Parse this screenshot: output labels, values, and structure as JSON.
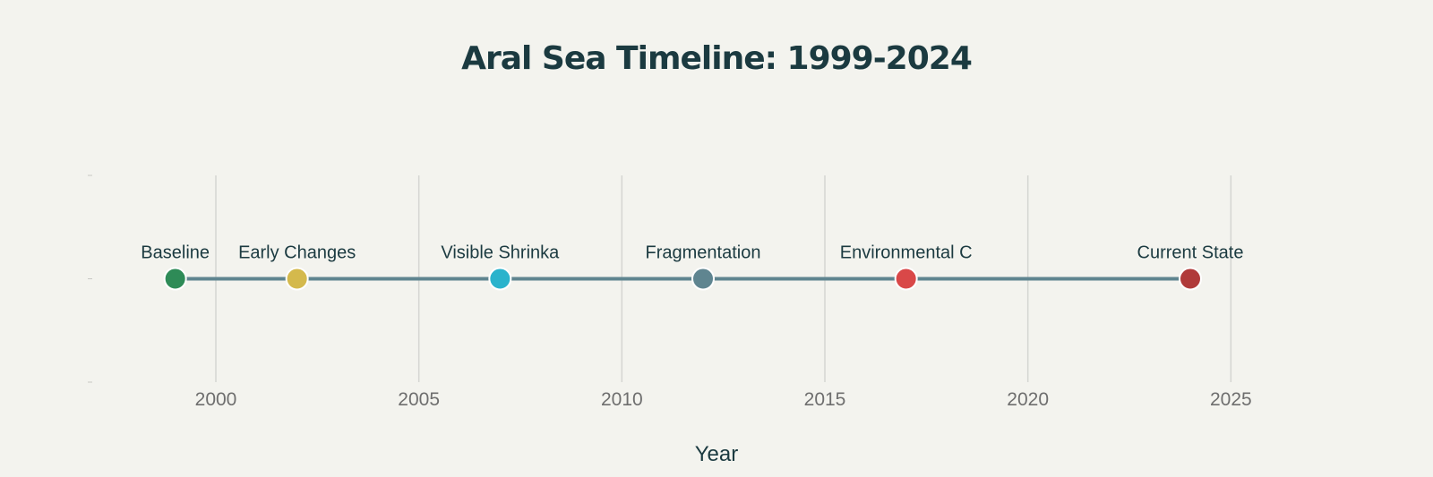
{
  "chart_data": {
    "type": "scatter",
    "title": "Aral Sea Timeline: 1999-2024",
    "xlabel": "Year",
    "ylabel": "",
    "xlim": [
      1997,
      2027
    ],
    "ylim": [
      -1,
      1
    ],
    "x_ticks": [
      2000,
      2005,
      2010,
      2015,
      2020,
      2025
    ],
    "y_ticks": [
      -1,
      0,
      1
    ],
    "grid": "vertical",
    "line_color": "#5f8590",
    "points": [
      {
        "x": 1999,
        "y": 0,
        "label": "Baseline",
        "color": "#2e8b57"
      },
      {
        "x": 2002,
        "y": 0,
        "label": "Early Changes",
        "color": "#d4b94c"
      },
      {
        "x": 2007,
        "y": 0,
        "label": "Visible Shrinka",
        "color": "#2ab3cc"
      },
      {
        "x": 2012,
        "y": 0,
        "label": "Fragmentation",
        "color": "#5f8590"
      },
      {
        "x": 2017,
        "y": 0,
        "label": "Environmental C",
        "color": "#d94848"
      },
      {
        "x": 2024,
        "y": 0,
        "label": "Current State",
        "color": "#b03a3a"
      }
    ]
  }
}
